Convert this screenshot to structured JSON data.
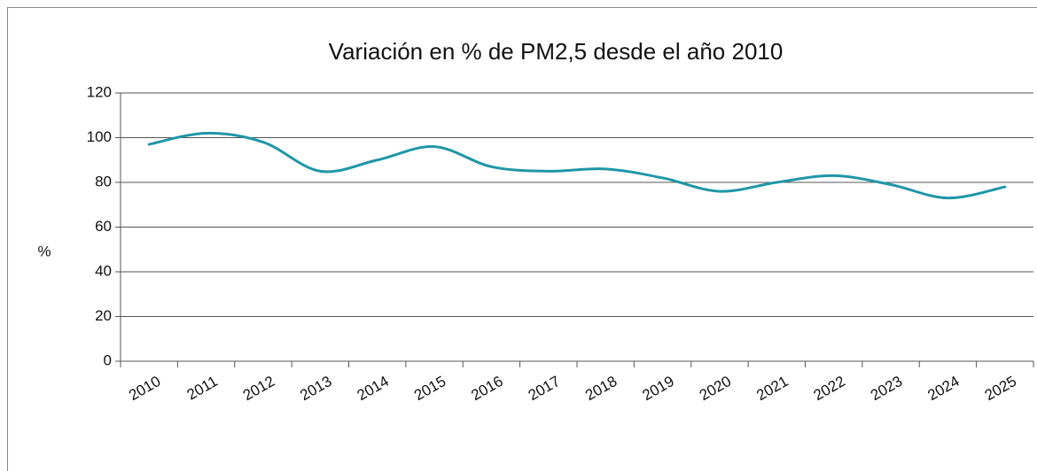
{
  "chart_data": {
    "type": "line",
    "title": "Variación en % de PM2,5 desde el año 2010",
    "y_label": "%",
    "categories": [
      "2010",
      "2011",
      "2012",
      "2013",
      "2014",
      "2015",
      "2016",
      "2017",
      "2018",
      "2019",
      "2020",
      "2021",
      "2022",
      "2023",
      "2024",
      "2025"
    ],
    "series": [
      {
        "name": "PM2,5",
        "color": "#1f96a8",
        "values": [
          97,
          102,
          98,
          85,
          90,
          96,
          87,
          85,
          86,
          82,
          76,
          80,
          83,
          79,
          73,
          78
        ]
      }
    ],
    "ylim": [
      0,
      120
    ],
    "yticks": [
      0,
      20,
      40,
      60,
      80,
      100,
      120
    ],
    "grid": true,
    "smooth": true
  }
}
